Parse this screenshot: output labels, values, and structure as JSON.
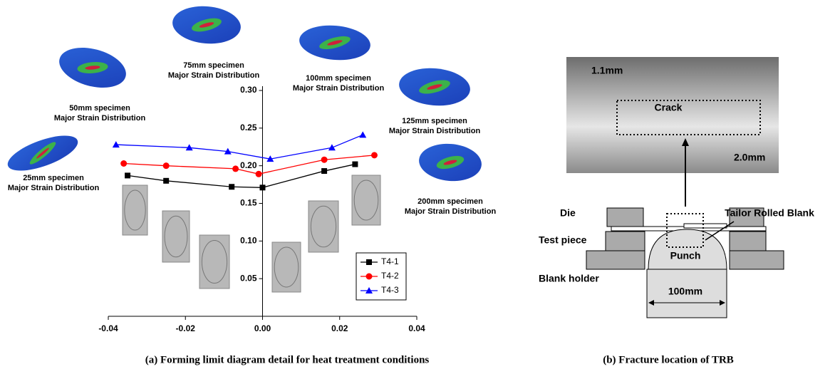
{
  "chart_data": {
    "type": "line",
    "annotations": [
      [
        "25mm specimen",
        "Major Strain Distribution"
      ],
      [
        "50mm specimen",
        "Major Strain Distribution"
      ],
      [
        "75mm specimen",
        "Major Strain Distribution"
      ],
      [
        "100mm specimen",
        "Major Strain Distribution"
      ],
      [
        "125mm specimen",
        "Major Strain Distribution"
      ],
      [
        "200mm specimen",
        "Major Strain Distribution"
      ]
    ],
    "series": [
      {
        "name": "T4-1",
        "color": "#000000",
        "marker": "square",
        "x": [
          -0.035,
          -0.025,
          -0.008,
          0.0,
          0.016,
          0.024
        ],
        "values": [
          0.187,
          0.18,
          0.172,
          0.171,
          0.193,
          0.202
        ]
      },
      {
        "name": "T4-2",
        "color": "#ff0000",
        "marker": "circle",
        "x": [
          -0.036,
          -0.025,
          -0.007,
          -0.001,
          0.016,
          0.029
        ],
        "values": [
          0.203,
          0.2,
          0.196,
          0.189,
          0.208,
          0.214
        ]
      },
      {
        "name": "T4-3",
        "color": "#0000ff",
        "marker": "triangle",
        "x": [
          -0.038,
          -0.019,
          -0.009,
          0.002,
          0.018,
          0.026
        ],
        "values": [
          0.228,
          0.224,
          0.219,
          0.209,
          0.224,
          0.241
        ]
      }
    ],
    "xlim": [
      -0.04,
      0.04
    ],
    "xticks": [
      -0.04,
      -0.02,
      {
        "value": 0,
        "label": "0.00"
      },
      0.02,
      0.04
    ],
    "ylim": [
      0,
      0.3
    ],
    "yticks": [
      0.05,
      {
        "value": 0.1,
        "label": "0.10"
      },
      0.15,
      {
        "value": 0.2,
        "label": "0.20"
      },
      0.25,
      {
        "value": 0.3,
        "label": "0.30"
      }
    ],
    "legend": "lower right",
    "caption": "(a) Forming limit diagram detail for heat treatment conditions"
  },
  "diagram": {
    "photo_labels": [
      "1.1mm",
      "Crack",
      "2.0mm"
    ],
    "parts": [
      "Tailor Rolled Blank",
      "Die",
      "Test piece",
      "Punch",
      "Blank holder",
      "100mm"
    ],
    "caption": "(b) Fracture location of TRB"
  }
}
